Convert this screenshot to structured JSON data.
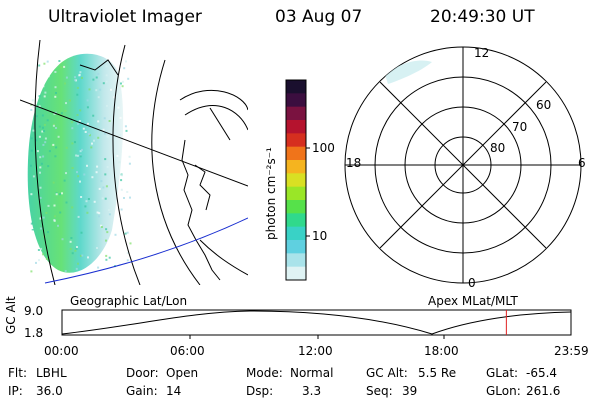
{
  "header": {
    "instrument": "Ultraviolet Imager",
    "date": "03 Aug 07",
    "time": "20:49:30 UT"
  },
  "colorbar": {
    "label": "photon cm⁻²s⁻¹",
    "ticks": [
      "100",
      "10"
    ],
    "colors": [
      "#1a0f2e",
      "#3b0e3f",
      "#7a1240",
      "#b5132e",
      "#d62f1f",
      "#f0741a",
      "#f5b41f",
      "#d9e023",
      "#9ae627",
      "#56e14a",
      "#30d98c",
      "#39d2c6",
      "#5fd0e0",
      "#a9e3ea",
      "#dff3f4"
    ]
  },
  "geo_map": {
    "label": "Geographic Lat/Lon"
  },
  "polar": {
    "label": "Apex MLat/MLT",
    "mlt_labels": {
      "top": "12",
      "right": "6",
      "bottom": "0",
      "left": "18"
    },
    "lat_labels": [
      "60",
      "70",
      "80"
    ]
  },
  "orbit_plot": {
    "ylabel": "GC Alt",
    "ymax": "9.0",
    "ymin": "1.8",
    "xticks": [
      "00:00",
      "06:00",
      "12:00",
      "18:00",
      "23:59"
    ],
    "current_time_frac": 0.873,
    "marker_color": "#e02020"
  },
  "footer": {
    "row1": [
      {
        "key": "Flt:",
        "val": "LBHL"
      },
      {
        "key": "Door:",
        "val": "Open"
      },
      {
        "key": "Mode:",
        "val": "Normal"
      },
      {
        "key": "GC Alt:",
        "val": "5.5 Re"
      },
      {
        "key": "GLat:",
        "val": "-65.4"
      }
    ],
    "row2": [
      {
        "key": "IP:",
        "val": "36.0"
      },
      {
        "key": "Gain:",
        "val": "14"
      },
      {
        "key": "Dsp:",
        "val": "3.3"
      },
      {
        "key": "Seq:",
        "val": "39"
      },
      {
        "key": "GLon:",
        "val": "261.6"
      }
    ]
  }
}
